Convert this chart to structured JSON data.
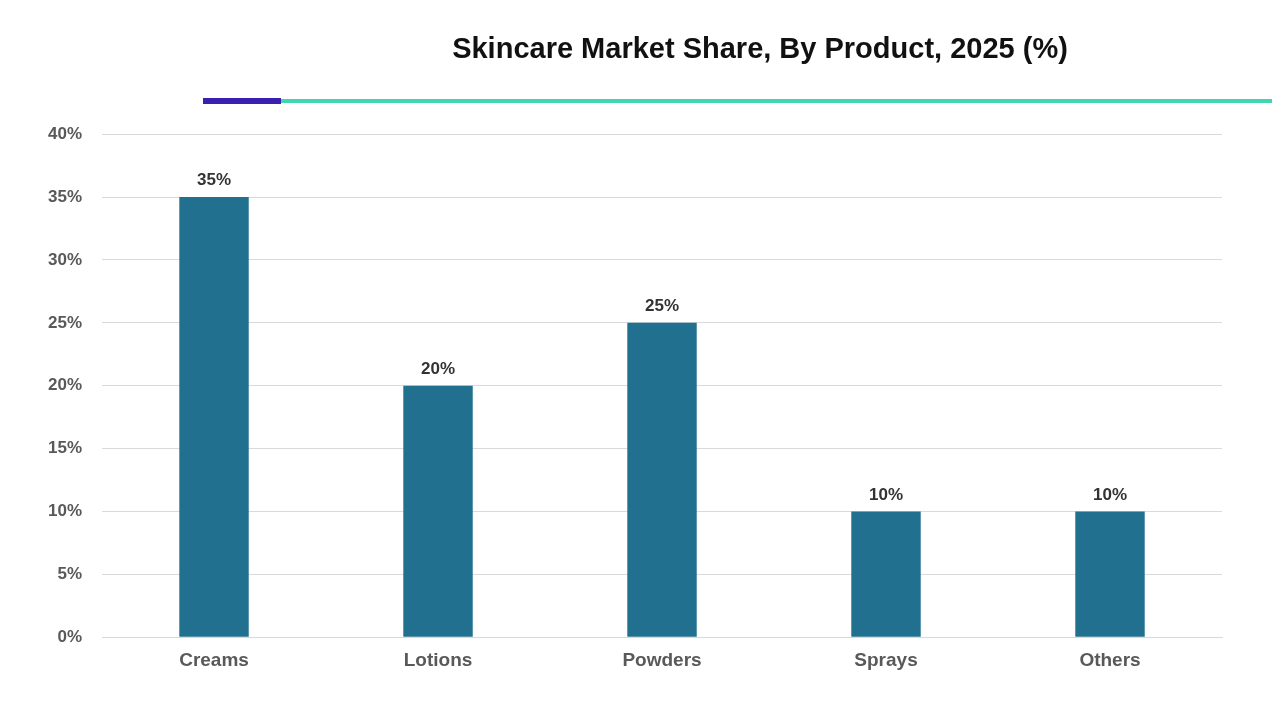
{
  "chart_data": {
    "type": "bar",
    "title": "Skincare Market Share, By Product, 2025 (%)",
    "categories": [
      "Creams",
      "Lotions",
      "Powders",
      "Sprays",
      "Others"
    ],
    "values": [
      35,
      20,
      25,
      10,
      10
    ],
    "color": "#22708f",
    "value_labels": [
      "35%",
      "20%",
      "25%",
      "10%",
      "10%"
    ],
    "ylim": [
      0,
      40
    ],
    "yticks": [
      {
        "value": 0,
        "label": "0%"
      },
      {
        "value": 5,
        "label": "5%"
      },
      {
        "value": 10,
        "label": "10%"
      },
      {
        "value": 15,
        "label": "15%"
      },
      {
        "value": 20,
        "label": "20%"
      },
      {
        "value": 25,
        "label": "25%"
      },
      {
        "value": 30,
        "label": "30%"
      },
      {
        "value": 35,
        "label": "35%"
      },
      {
        "value": 40,
        "label": "40%"
      }
    ],
    "grid": "y",
    "legend": false
  }
}
